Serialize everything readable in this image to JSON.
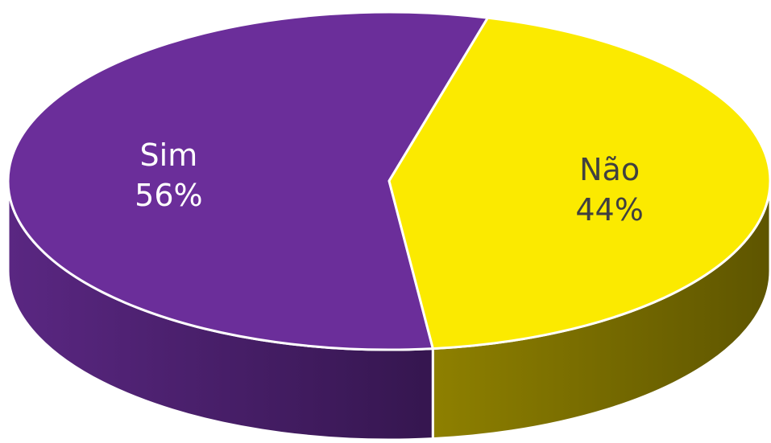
{
  "chart_data": {
    "type": "pie",
    "style": "3d",
    "categories": [
      "Sim",
      "Não"
    ],
    "values": [
      56,
      44
    ],
    "value_suffix": "%",
    "colors": [
      "#6B2E9A",
      "#FBEA00"
    ],
    "side_colors": [
      "#4A1F6C",
      "#857800"
    ],
    "label_colors": [
      "#FFFFFF",
      "#404040"
    ]
  }
}
